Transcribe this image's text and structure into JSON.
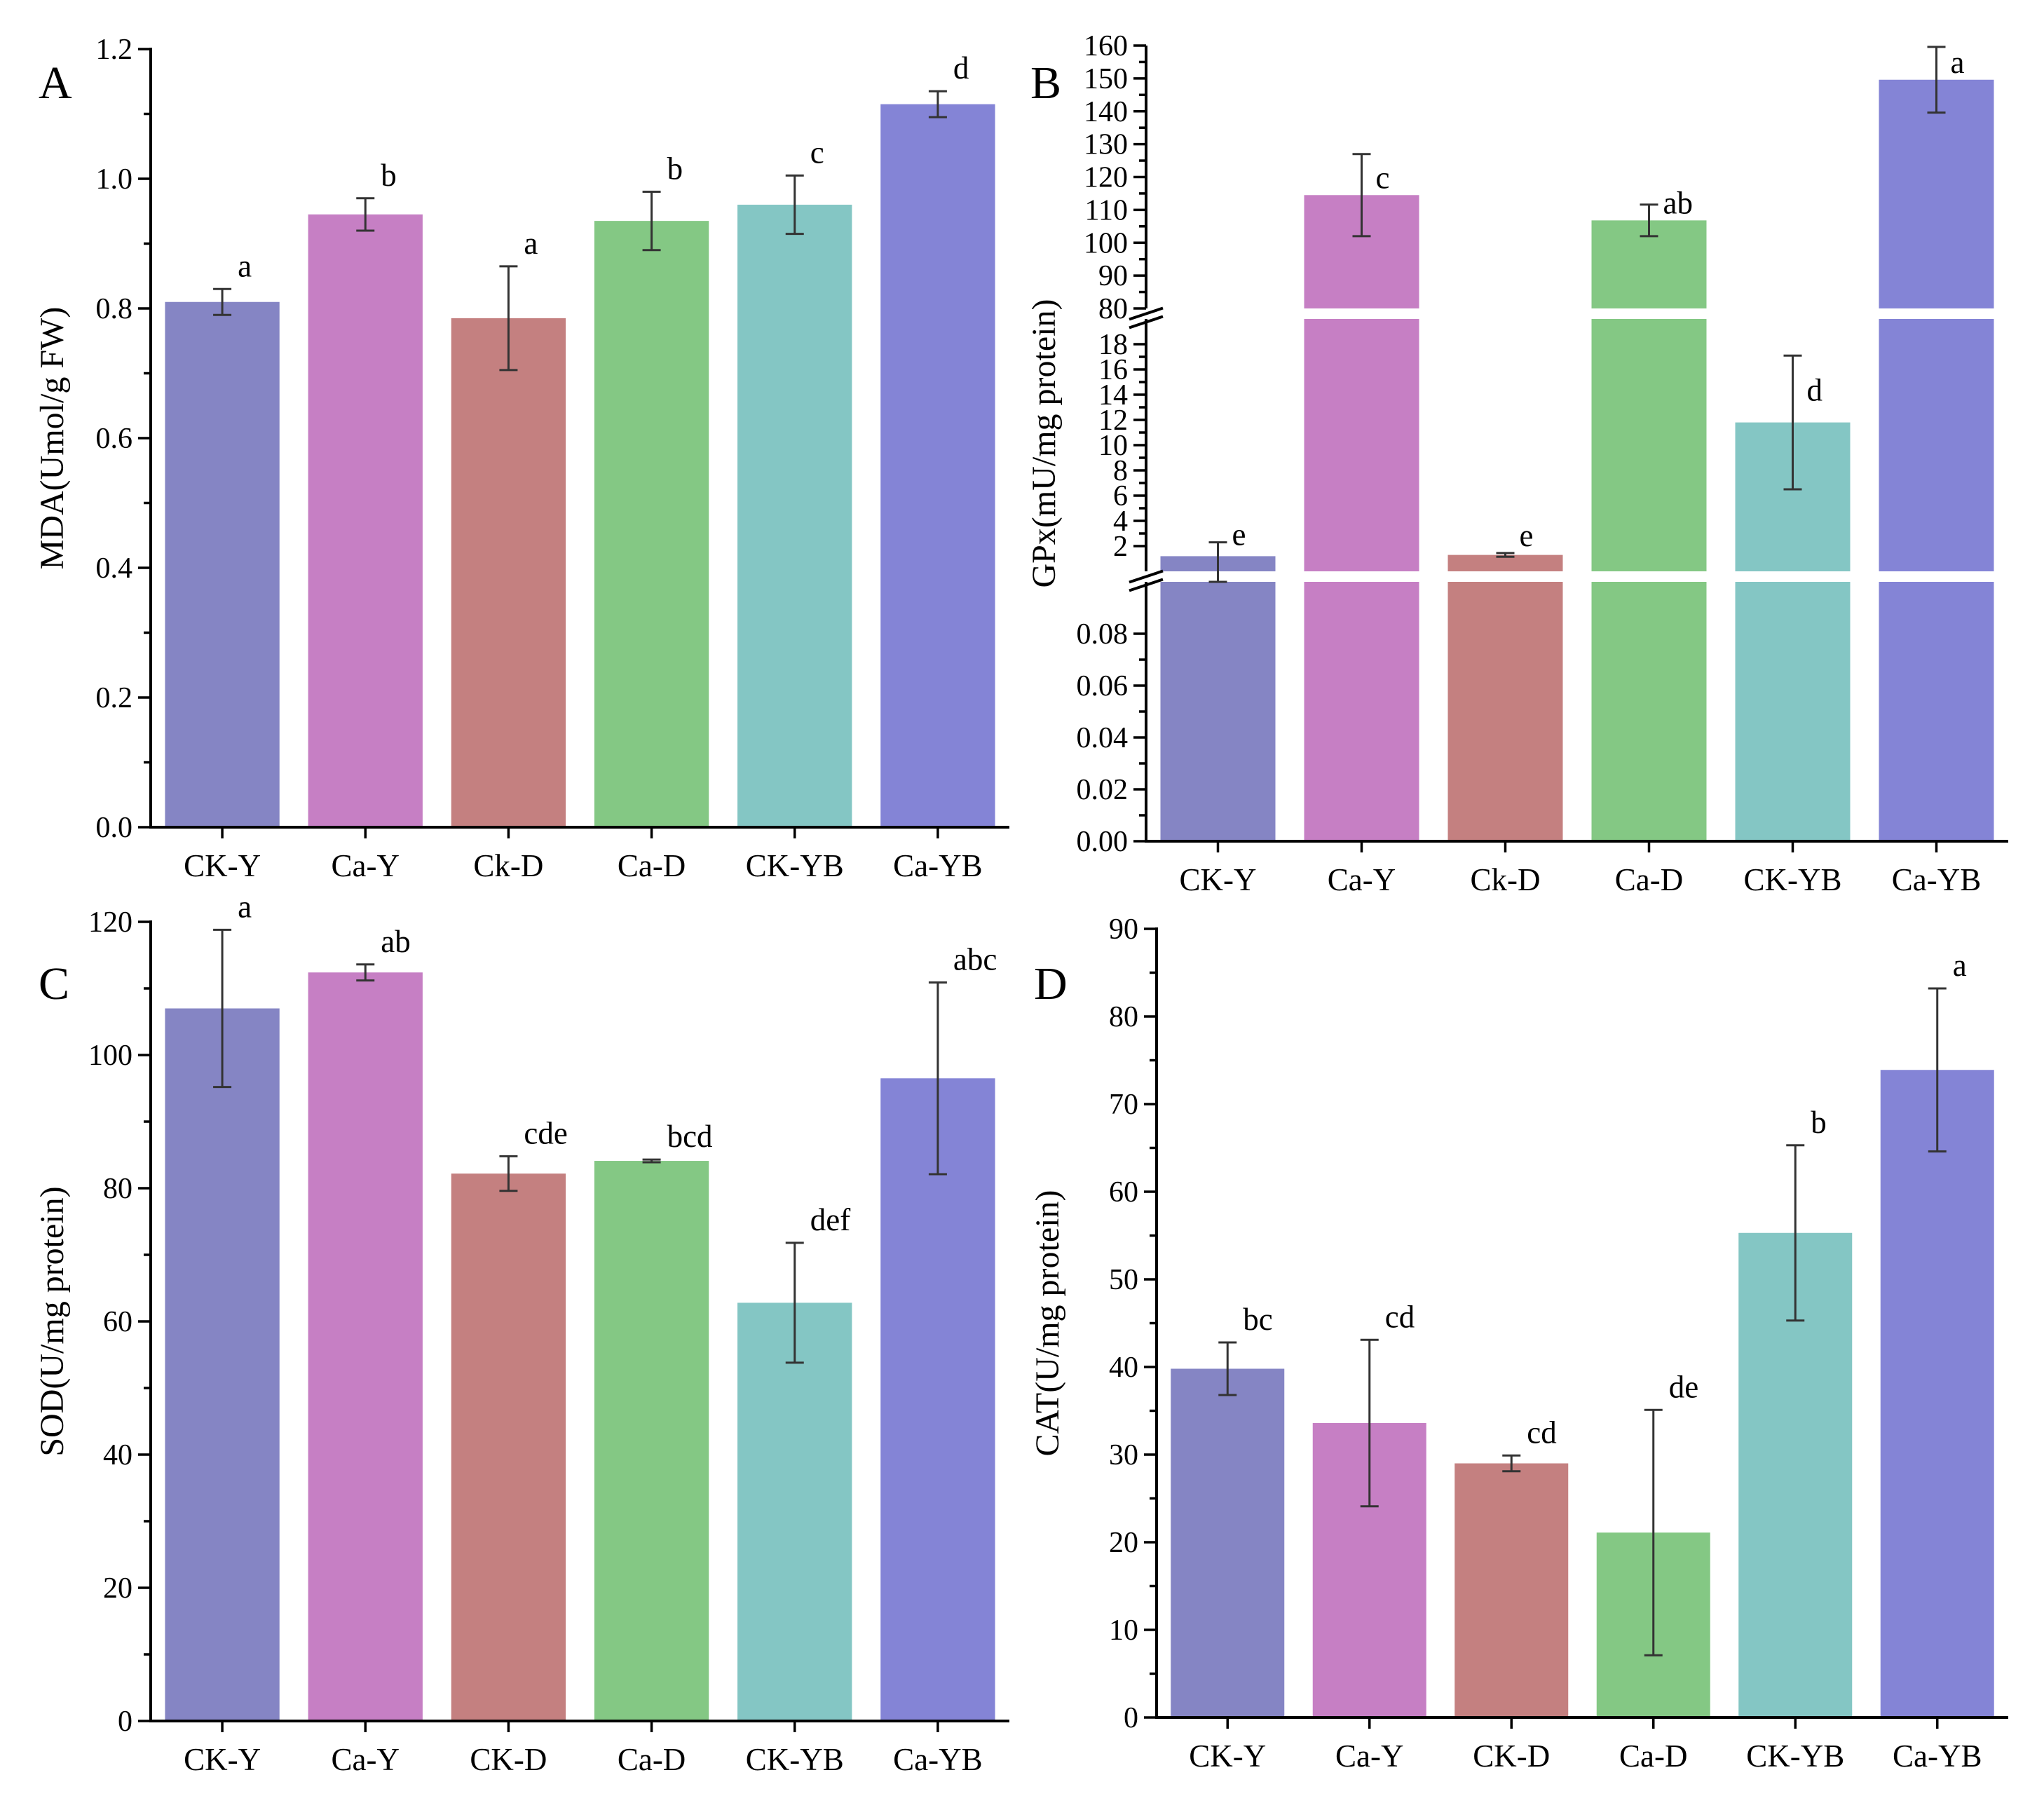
{
  "colors": [
    "#8585c4",
    "#c67fc4",
    "#c48080",
    "#84c884",
    "#84c6c4",
    "#8484d6"
  ],
  "chart_data": [
    {
      "id": "A",
      "type": "bar",
      "panel_label": "A",
      "ylabel": "MDA(Umol/g FW)",
      "categories": [
        "CK-Y",
        "Ca-Y",
        "Ck-D",
        "Ca-D",
        "CK-YB",
        "Ca-YB"
      ],
      "values": [
        0.81,
        0.945,
        0.785,
        0.935,
        0.96,
        1.115
      ],
      "errors": [
        0.02,
        0.025,
        0.08,
        0.045,
        0.045,
        0.02
      ],
      "letters": [
        "a",
        "b",
        "a",
        "b",
        "c",
        "d"
      ],
      "ylim": [
        0,
        1.2
      ],
      "yticks": [
        0,
        0.2,
        0.4,
        0.6,
        0.8,
        1.0,
        1.2
      ],
      "ytick_labels": [
        "0.0",
        "0.2",
        "0.4",
        "0.6",
        "0.8",
        "1.0",
        "1.2"
      ]
    },
    {
      "id": "B",
      "type": "bar",
      "panel_label": "B",
      "ylabel": "GPx(mU/mg protein)",
      "categories": [
        "CK-Y",
        "Ca-Y",
        "Ck-D",
        "Ca-D",
        "CK-YB",
        "Ca-YB"
      ],
      "values": [
        1.2,
        114.5,
        1.3,
        106.8,
        11.8,
        149.6
      ],
      "errors": [
        1.1,
        12.5,
        0.15,
        4.8,
        5.3,
        10
      ],
      "letters": [
        "e",
        "c",
        "e",
        "ab",
        "d",
        "a"
      ],
      "broken_axis": [
        {
          "ylim": [
            0,
            0.1
          ],
          "yticks": [
            0,
            0.02,
            0.04,
            0.06,
            0.08
          ],
          "ytick_labels": [
            "0.00",
            "0.02",
            "0.04",
            "0.06",
            "0.08"
          ]
        },
        {
          "ylim": [
            0,
            20
          ],
          "yticks": [
            2,
            4,
            6,
            8,
            10,
            12,
            14,
            16,
            18
          ],
          "ytick_labels": [
            "2",
            "4",
            "6",
            "8",
            "10",
            "12",
            "14",
            "16",
            "18"
          ]
        },
        {
          "ylim": [
            80,
            160
          ],
          "yticks": [
            80,
            90,
            100,
            110,
            120,
            130,
            140,
            150,
            160
          ],
          "ytick_labels": [
            "80",
            "90",
            "100",
            "110",
            "120",
            "130",
            "140",
            "150",
            "160"
          ]
        }
      ]
    },
    {
      "id": "C",
      "type": "bar",
      "panel_label": "C",
      "ylabel": "SOD(U/mg protein)",
      "categories": [
        "CK-Y",
        "Ca-Y",
        "CK-D",
        "Ca-D",
        "CK-YB",
        "Ca-YB"
      ],
      "values": [
        107,
        112.4,
        82.2,
        84.1,
        62.8,
        96.5
      ],
      "errors": [
        11.8,
        1.2,
        2.6,
        0.2,
        9,
        14.4
      ],
      "letters": [
        "a",
        "ab",
        "cde",
        "bcd",
        "def",
        "abc"
      ],
      "ylim": [
        0,
        120
      ],
      "yticks": [
        0,
        20,
        40,
        60,
        80,
        100,
        120
      ],
      "ytick_labels": [
        "0",
        "20",
        "40",
        "60",
        "80",
        "100",
        "120"
      ]
    },
    {
      "id": "D",
      "type": "bar",
      "panel_label": "D",
      "ylabel": "CAT(U/mg protein)",
      "categories": [
        "CK-Y",
        "Ca-Y",
        "CK-D",
        "Ca-D",
        "CK-YB",
        "Ca-YB"
      ],
      "values": [
        39.8,
        33.6,
        29,
        21.1,
        55.3,
        73.9
      ],
      "errors": [
        3,
        9.5,
        0.9,
        14,
        10,
        9.3
      ],
      "letters": [
        "bc",
        "cd",
        "cd",
        "de",
        "b",
        "a"
      ],
      "ylim": [
        0,
        90
      ],
      "yticks": [
        0,
        10,
        20,
        30,
        40,
        50,
        60,
        70,
        80,
        90
      ],
      "ytick_labels": [
        "0",
        "10",
        "20",
        "30",
        "40",
        "50",
        "60",
        "70",
        "80",
        "90"
      ]
    }
  ]
}
